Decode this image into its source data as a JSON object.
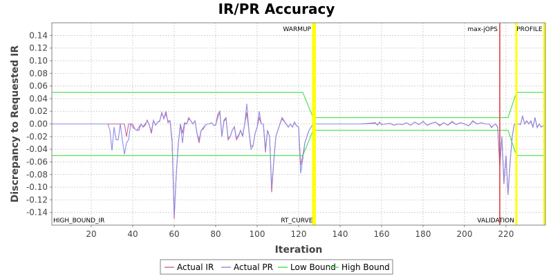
{
  "chart_data": {
    "type": "line",
    "title": "IR/PR Accuracy",
    "xlabel": "Iteration",
    "ylabel": "Discrepancy to Requested IR",
    "xlim": [
      1,
      239
    ],
    "ylim": [
      -0.16,
      0.16
    ],
    "xticks": [
      20,
      40,
      60,
      80,
      100,
      120,
      140,
      160,
      180,
      200,
      220
    ],
    "xtick_labels": [
      "20",
      "40",
      "60",
      "80",
      "100",
      "120",
      "140",
      "160",
      "180",
      "200",
      "220"
    ],
    "yticks": [
      -0.14,
      -0.12,
      -0.1,
      -0.08,
      -0.06,
      -0.04,
      -0.02,
      0.0,
      0.02,
      0.04,
      0.06,
      0.08,
      0.1,
      0.12,
      0.14
    ],
    "ytick_labels": [
      "-0.14",
      "-0.12",
      "-0.10",
      "-0.08",
      "-0.06",
      "-0.04",
      "-0.02",
      "0.00",
      "0.02",
      "0.04",
      "0.06",
      "0.08",
      "0.10",
      "0.12",
      "0.14"
    ],
    "grid": true,
    "legend_position": "bottom-center",
    "markers": [
      {
        "x": 127,
        "label": "WARMUP",
        "color": "#ffff00",
        "label_side": "left",
        "label_pos": "top"
      },
      {
        "x": 127.8,
        "label": "RT_CURVE",
        "color": "#ffff00",
        "label_side": "left",
        "label_pos": "bottom"
      },
      {
        "x": 217,
        "label": "max-jOPS",
        "color": "#e04040",
        "label_side": "left",
        "label_pos": "top"
      },
      {
        "x": 225,
        "label": "VALIDATION",
        "color": "#ffff00",
        "label_side": "left",
        "label_pos": "bottom"
      },
      {
        "x": 238.5,
        "label": "PROFILE",
        "color": "#ffff00",
        "label_side": "left",
        "label_pos": "top"
      }
    ],
    "corner_labels": [
      {
        "label": "HIGH_BOUND_IR",
        "position": "bottom-left"
      }
    ],
    "series": [
      {
        "name": "Actual IR",
        "color": "#c86496",
        "x": [
          1,
          10,
          20,
          28,
          29,
          30,
          31,
          32,
          33,
          34,
          35,
          36,
          37,
          38,
          39,
          40,
          41,
          42,
          43,
          44,
          45,
          46,
          47,
          48,
          49,
          50,
          51,
          52,
          53,
          54,
          55,
          56,
          57,
          58,
          59,
          60,
          61,
          62,
          63,
          64,
          65,
          66,
          67,
          68,
          69,
          70,
          71,
          72,
          73,
          74,
          75,
          76,
          77,
          78,
          79,
          80,
          81,
          82,
          83,
          84,
          85,
          86,
          87,
          88,
          89,
          90,
          91,
          92,
          93,
          94,
          95,
          96,
          97,
          98,
          99,
          100,
          101,
          102,
          103,
          104,
          105,
          106,
          107,
          108,
          109,
          110,
          111,
          112,
          113,
          114,
          115,
          116,
          117,
          118,
          119,
          120,
          121,
          122,
          123,
          124,
          125,
          126,
          127,
          130,
          140,
          150,
          157,
          158,
          159,
          160,
          162,
          164,
          166,
          168,
          170,
          172,
          174,
          176,
          178,
          180,
          182,
          184,
          186,
          188,
          190,
          192,
          194,
          196,
          198,
          200,
          202,
          204,
          206,
          208,
          210,
          212,
          213,
          214,
          215,
          216,
          217,
          218,
          219,
          220,
          221,
          222,
          223,
          224,
          225,
          226,
          227,
          228,
          229,
          230,
          231,
          232,
          233,
          234,
          235,
          236,
          237,
          239
        ],
        "y": [
          0,
          0,
          0,
          0,
          0,
          0,
          0,
          0,
          0,
          0,
          0,
          0,
          -0.02,
          0,
          0,
          0,
          -0.008,
          -0.01,
          -0.01,
          0,
          -0.005,
          -0.002,
          0.006,
          -0.002,
          -0.015,
          0.005,
          -0.002,
          0.003,
          0.004,
          0.018,
          0.008,
          0.02,
          0.002,
          0.005,
          -0.03,
          -0.15,
          -0.08,
          -0.03,
          0.0,
          -0.015,
          0.002,
          0.0,
          0.01,
          0.005,
          0.0,
          0.005,
          -0.015,
          -0.03,
          -0.01,
          -0.008,
          -0.002,
          0.0,
          0.0,
          0.002,
          -0.002,
          -0.002,
          0.015,
          0.02,
          -0.02,
          0.006,
          0.01,
          -0.025,
          -0.02,
          -0.01,
          -0.005,
          -0.025,
          -0.02,
          -0.01,
          -0.02,
          0.0,
          0.018,
          -0.01,
          -0.035,
          -0.035,
          -0.015,
          -0.005,
          0.01,
          0.0,
          0.0,
          -0.045,
          -0.01,
          -0.02,
          -0.108,
          -0.06,
          -0.02,
          -0.01,
          0.0,
          0.01,
          0.005,
          0.0,
          -0.005,
          0.0,
          -0.005,
          0.003,
          -0.003,
          -0.005,
          -0.065,
          -0.05,
          -0.03,
          -0.02,
          -0.01,
          -0.005,
          0.0,
          0.0,
          0.0,
          0.0,
          0.002,
          -0.002,
          0.003,
          -0.001,
          0.0,
          0.001,
          -0.002,
          0.0,
          -0.001,
          0.002,
          -0.002,
          0.003,
          -0.001,
          0.004,
          -0.002,
          0.001,
          0.003,
          -0.003,
          0.002,
          -0.002,
          0.004,
          -0.001,
          0.002,
          0.0,
          -0.003,
          0.005,
          0.0,
          0.002,
          0.0,
          0.0,
          -0.005,
          -0.002,
          0.0,
          -0.005,
          -0.068,
          -0.02,
          -0.095,
          -0.05,
          -0.112,
          -0.06,
          -0.02,
          0.0,
          0.0,
          0.0,
          -0.001,
          0.013,
          0.0,
          0.005,
          0.0,
          0.005,
          -0.005,
          0.01,
          -0.005,
          0.0,
          -0.005,
          0.0
        ]
      },
      {
        "name": "Actual PR",
        "color": "#8c8ce6",
        "x": [
          1,
          10,
          20,
          28,
          29,
          30,
          31,
          32,
          33,
          34,
          35,
          36,
          37,
          38,
          39,
          40,
          41,
          42,
          43,
          44,
          45,
          46,
          47,
          48,
          49,
          50,
          51,
          52,
          53,
          54,
          55,
          56,
          57,
          58,
          59,
          60,
          61,
          62,
          63,
          64,
          65,
          66,
          67,
          68,
          69,
          70,
          71,
          72,
          73,
          74,
          75,
          76,
          77,
          78,
          79,
          80,
          81,
          82,
          83,
          84,
          85,
          86,
          87,
          88,
          89,
          90,
          91,
          92,
          93,
          94,
          95,
          96,
          97,
          98,
          99,
          100,
          101,
          102,
          103,
          104,
          105,
          106,
          107,
          108,
          109,
          110,
          111,
          112,
          113,
          114,
          115,
          116,
          117,
          118,
          119,
          120,
          121,
          122,
          123,
          124,
          125,
          126,
          127,
          130,
          140,
          150,
          157,
          158,
          159,
          160,
          162,
          164,
          166,
          168,
          170,
          172,
          174,
          176,
          178,
          180,
          182,
          184,
          186,
          188,
          190,
          192,
          194,
          196,
          198,
          200,
          202,
          204,
          206,
          208,
          210,
          212,
          213,
          214,
          215,
          216,
          217,
          218,
          219,
          220,
          221,
          222,
          223,
          224,
          225,
          226,
          227,
          228,
          229,
          230,
          231,
          232,
          233,
          234,
          235,
          236,
          237,
          239
        ],
        "y": [
          0,
          0,
          0,
          0,
          -0.01,
          -0.042,
          -0.005,
          -0.025,
          -0.025,
          0,
          -0.025,
          -0.048,
          -0.03,
          -0.025,
          0,
          -0.005,
          -0.008,
          -0.01,
          -0.005,
          0,
          -0.004,
          0,
          0.005,
          -0.002,
          -0.012,
          0.006,
          -0.002,
          0.003,
          0.005,
          0.016,
          0.01,
          0.015,
          0.005,
          0.005,
          -0.025,
          -0.145,
          -0.08,
          -0.03,
          0.0,
          -0.03,
          0.0,
          0.0,
          0.008,
          0.005,
          0.0,
          0.005,
          -0.015,
          -0.025,
          -0.01,
          -0.006,
          -0.002,
          0.0,
          0.0,
          0.002,
          -0.002,
          -0.002,
          0.01,
          0.018,
          -0.018,
          0.004,
          0.008,
          -0.022,
          -0.02,
          -0.01,
          -0.004,
          -0.022,
          -0.018,
          -0.01,
          -0.018,
          0.0,
          0.032,
          -0.01,
          -0.04,
          -0.035,
          -0.015,
          -0.005,
          0.02,
          0.0,
          0.0,
          -0.04,
          -0.01,
          -0.02,
          -0.1,
          -0.06,
          -0.02,
          -0.01,
          0.0,
          0.008,
          0.004,
          0.0,
          -0.005,
          0.0,
          -0.005,
          0.002,
          -0.003,
          -0.005,
          -0.078,
          -0.055,
          -0.03,
          -0.02,
          -0.01,
          -0.005,
          0.0,
          0.0,
          0.0,
          0.0,
          0.001,
          -0.001,
          0.002,
          -0.001,
          0.0,
          0.001,
          -0.002,
          0.0,
          -0.001,
          0.002,
          -0.002,
          0.003,
          -0.001,
          0.004,
          -0.002,
          0.001,
          0.003,
          -0.002,
          0.002,
          -0.002,
          0.003,
          -0.001,
          0.002,
          0.0,
          -0.003,
          0.004,
          0.0,
          0.002,
          0.0,
          0.0,
          -0.006,
          -0.002,
          0.0,
          -0.006,
          -0.065,
          -0.02,
          -0.09,
          -0.05,
          -0.11,
          -0.06,
          -0.02,
          0.0,
          0.0,
          0.0,
          -0.001,
          0.012,
          0.0,
          0.004,
          0.0,
          0.004,
          -0.005,
          0.01,
          -0.006,
          0.0,
          -0.005,
          0.0
        ]
      },
      {
        "name": "Low Bound",
        "color": "#40e040",
        "x": [
          1,
          122,
          127,
          217,
          221,
          225,
          239
        ],
        "y": [
          -0.05,
          -0.05,
          -0.01,
          -0.01,
          -0.01,
          -0.05,
          -0.05
        ]
      },
      {
        "name": "High Bound",
        "color": "#40e040",
        "x": [
          1,
          122,
          127,
          217,
          221,
          225,
          239
        ],
        "y": [
          0.05,
          0.05,
          0.01,
          0.01,
          0.01,
          0.05,
          0.05
        ]
      }
    ]
  }
}
